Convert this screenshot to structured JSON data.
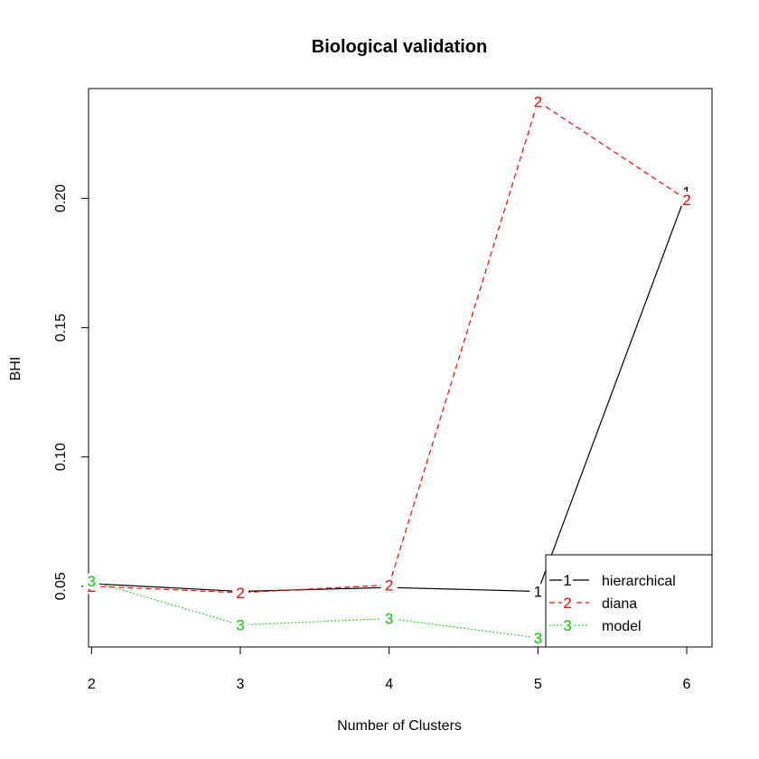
{
  "chart_data": {
    "type": "line",
    "title": "Biological validation",
    "xlabel": "Number of Clusters",
    "ylabel": "BHI",
    "x": [
      2,
      3,
      4,
      5,
      6
    ],
    "xlim": [
      1.98,
      6.17
    ],
    "ylim": [
      0.0265,
      0.2425
    ],
    "x_ticks": [
      "2",
      "3",
      "4",
      "5",
      "6"
    ],
    "y_ticks": [
      "0.05",
      "0.10",
      "0.15",
      "0.20"
    ],
    "grid": false,
    "legend_position": "bottom-right",
    "series": [
      {
        "name": "hierarchical",
        "marker": "1",
        "color": "#000000",
        "linestyle": "solid",
        "values": [
          0.051,
          0.048,
          0.0495,
          0.048,
          0.2025
        ]
      },
      {
        "name": "diana",
        "marker": "2",
        "color": "#ff0000",
        "linestyle": "dashed",
        "values": [
          0.05,
          0.0475,
          0.0505,
          0.2375,
          0.1995
        ]
      },
      {
        "name": "model",
        "marker": "3",
        "color": "#00cc00",
        "linestyle": "dotted",
        "values": [
          0.052,
          0.035,
          0.0375,
          0.03,
          null
        ]
      }
    ]
  }
}
